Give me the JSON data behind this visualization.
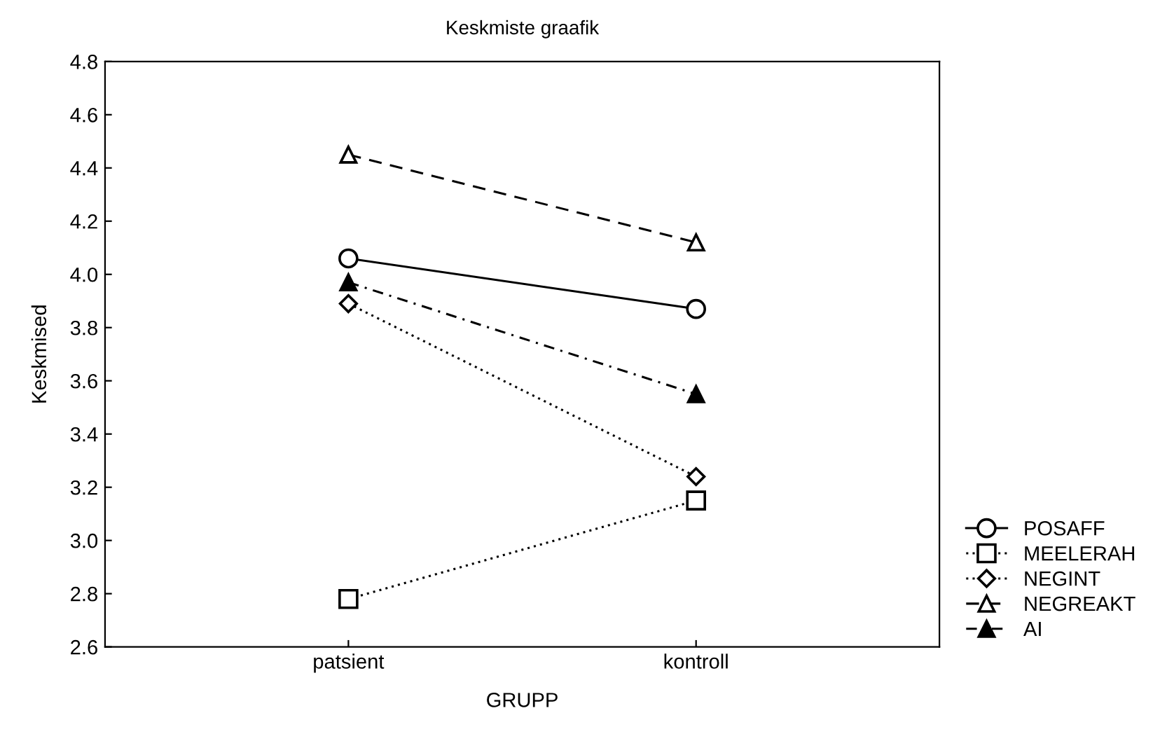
{
  "chart_data": {
    "type": "line",
    "title": "Keskmiste graafik",
    "xlabel": "GRUPP",
    "ylabel": "Keskmised",
    "categories": [
      "patsient",
      "kontroll"
    ],
    "series": [
      {
        "name": "POSAFF",
        "color": "#000000",
        "values": [
          4.06,
          3.87
        ],
        "marker": "circle",
        "line_style": "solid"
      },
      {
        "name": "MEELERAH",
        "color": "#000000",
        "values": [
          2.78,
          3.15
        ],
        "marker": "square",
        "line_style": "dotted"
      },
      {
        "name": "NEGINT",
        "color": "#000000",
        "values": [
          3.89,
          3.24
        ],
        "marker": "diamond",
        "line_style": "dotted"
      },
      {
        "name": "NEGREAKT",
        "color": "#000000",
        "values": [
          4.45,
          4.12
        ],
        "marker": "triangle",
        "line_style": "dashed"
      },
      {
        "name": "AI",
        "color": "#000000",
        "values": [
          3.97,
          3.55
        ],
        "marker": "triangle",
        "line_style": "dashdot"
      }
    ],
    "ylim": [
      2.6,
      4.8
    ],
    "yticks": [
      2.6,
      2.8,
      {
        "value": 3,
        "label": "3.0"
      },
      3.2,
      3.4,
      3.6,
      3.8,
      {
        "value": 4,
        "label": "4.0"
      },
      4.2,
      4.4,
      4.6,
      4.8
    ],
    "grid": false,
    "legend": "bottom right"
  }
}
